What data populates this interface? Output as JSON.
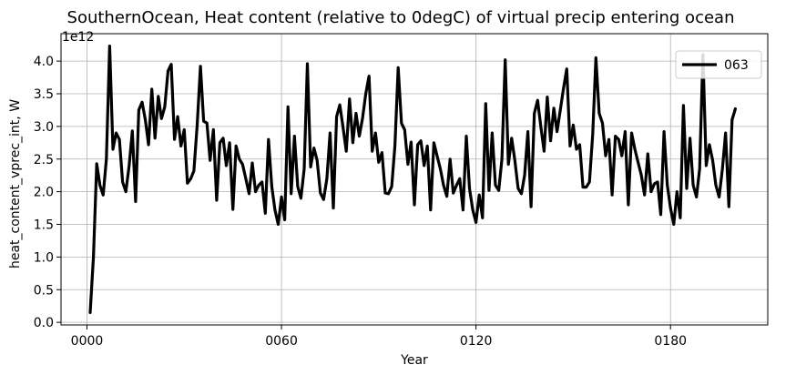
{
  "chart_data": {
    "type": "line",
    "title": "SouthernOcean, Heat content (relative to 0degC) of virtual precip entering ocean",
    "xlabel": "Year",
    "ylabel": "heat_content_vprec_int, W",
    "y_offset_label": "1e12",
    "xlim": [
      -8,
      210
    ],
    "ylim": [
      -0.04,
      4.42
    ],
    "xticks": [
      0,
      60,
      120,
      180
    ],
    "xtick_labels": [
      "0000",
      "0060",
      "0120",
      "0180"
    ],
    "yticks": [
      0.0,
      0.5,
      1.0,
      1.5,
      2.0,
      2.5,
      3.0,
      3.5,
      4.0
    ],
    "ytick_labels": [
      "0.0",
      "0.5",
      "1.0",
      "1.5",
      "2.0",
      "2.5",
      "3.0",
      "3.5",
      "4.0"
    ],
    "grid": true,
    "legend_position": "top-right",
    "series": [
      {
        "name": "063",
        "color": "#000000",
        "x": [
          1,
          2,
          3,
          4,
          5,
          6,
          7,
          8,
          9,
          10,
          11,
          12,
          13,
          14,
          15,
          16,
          17,
          18,
          19,
          20,
          21,
          22,
          23,
          24,
          25,
          26,
          27,
          28,
          29,
          30,
          31,
          32,
          33,
          34,
          35,
          36,
          37,
          38,
          39,
          40,
          41,
          42,
          43,
          44,
          45,
          46,
          47,
          48,
          49,
          50,
          51,
          52,
          53,
          54,
          55,
          56,
          57,
          58,
          59,
          60,
          61,
          62,
          63,
          64,
          65,
          66,
          67,
          68,
          69,
          70,
          71,
          72,
          73,
          74,
          75,
          76,
          77,
          78,
          79,
          80,
          81,
          82,
          83,
          84,
          85,
          86,
          87,
          88,
          89,
          90,
          91,
          92,
          93,
          94,
          95,
          96,
          97,
          98,
          99,
          100,
          101,
          102,
          103,
          104,
          105,
          106,
          107,
          108,
          109,
          110,
          111,
          112,
          113,
          114,
          115,
          116,
          117,
          118,
          119,
          120,
          121,
          122,
          123,
          124,
          125,
          126,
          127,
          128,
          129,
          130,
          131,
          132,
          133,
          134,
          135,
          136,
          137,
          138,
          139,
          140,
          141,
          142,
          143,
          144,
          145,
          146,
          147,
          148,
          149,
          150,
          151,
          152,
          153,
          154,
          155,
          156,
          157,
          158,
          159,
          160,
          161,
          162,
          163,
          164,
          165,
          166,
          167,
          168,
          169,
          170,
          171,
          172,
          173,
          174,
          175,
          176,
          177,
          178,
          179,
          180,
          181,
          182,
          183,
          184,
          185,
          186,
          187,
          188,
          189,
          190,
          191,
          192,
          193,
          194,
          195,
          196,
          197,
          198,
          199,
          200
        ],
        "y": [
          0.15,
          1.0,
          2.43,
          2.1,
          1.95,
          2.5,
          4.23,
          2.65,
          2.9,
          2.8,
          2.15,
          2.0,
          2.4,
          2.93,
          1.85,
          3.25,
          3.37,
          3.1,
          2.72,
          3.57,
          2.82,
          3.46,
          3.12,
          3.3,
          3.85,
          3.95,
          2.8,
          3.15,
          2.7,
          2.95,
          2.13,
          2.2,
          2.32,
          3.02,
          3.92,
          3.08,
          3.05,
          2.48,
          2.95,
          1.87,
          2.75,
          2.82,
          2.4,
          2.75,
          1.73,
          2.7,
          2.5,
          2.42,
          2.2,
          1.97,
          2.44,
          2.0,
          2.1,
          2.15,
          1.67,
          2.8,
          2.08,
          1.72,
          1.5,
          1.92,
          1.57,
          3.3,
          1.97,
          2.85,
          2.08,
          1.9,
          2.35,
          3.96,
          2.38,
          2.67,
          2.48,
          1.98,
          1.88,
          2.2,
          2.9,
          1.75,
          3.15,
          3.33,
          2.98,
          2.62,
          3.42,
          2.75,
          3.2,
          2.85,
          3.12,
          3.5,
          3.77,
          2.62,
          2.9,
          2.45,
          2.6,
          1.98,
          1.97,
          2.08,
          2.7,
          3.9,
          3.05,
          2.95,
          2.42,
          2.76,
          1.8,
          2.72,
          2.78,
          2.4,
          2.7,
          1.72,
          2.75,
          2.55,
          2.35,
          2.1,
          1.93,
          2.5,
          1.98,
          2.1,
          2.2,
          1.72,
          2.85,
          2.05,
          1.72,
          1.53,
          1.95,
          1.6,
          3.35,
          2.02,
          2.9,
          2.1,
          2.02,
          2.5,
          4.02,
          2.42,
          2.82,
          2.48,
          2.05,
          1.97,
          2.25,
          2.92,
          1.77,
          3.2,
          3.4,
          3.0,
          2.62,
          3.45,
          2.78,
          3.28,
          2.92,
          3.25,
          3.58,
          3.88,
          2.7,
          3.02,
          2.65,
          2.72,
          2.07,
          2.07,
          2.15,
          2.88,
          4.05,
          3.2,
          3.05,
          2.55,
          2.8,
          1.95,
          2.85,
          2.8,
          2.55,
          2.92,
          1.8,
          2.9,
          2.65,
          2.45,
          2.25,
          1.95,
          2.58,
          2.0,
          2.12,
          2.15,
          1.65,
          2.92,
          2.1,
          1.75,
          1.5,
          2.0,
          1.6,
          3.32,
          2.05,
          2.82,
          2.1,
          1.92,
          2.35,
          4.1,
          2.4,
          2.72,
          2.48,
          2.1,
          1.92,
          2.35,
          2.9,
          1.77,
          3.1,
          3.27
        ]
      }
    ]
  }
}
